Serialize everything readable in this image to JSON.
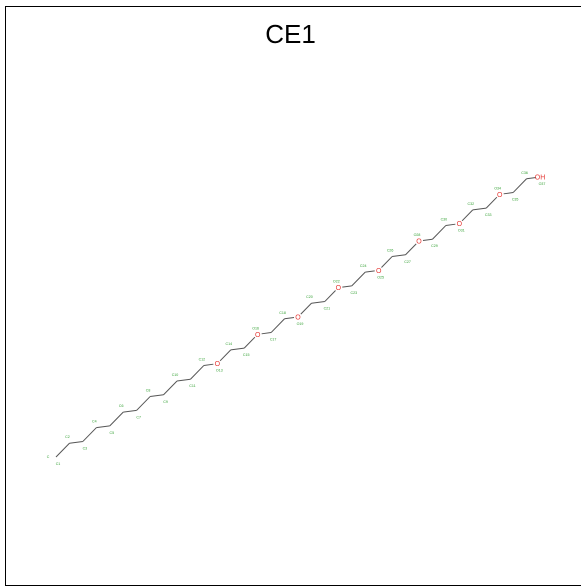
{
  "title": "CE1",
  "colors": {
    "bond": "#555555",
    "oxygen": "#e53935",
    "index": "#2e9e2e"
  },
  "molecule": {
    "hetero_label": "O",
    "terminal_label": "OH",
    "atoms": [
      {
        "label": "",
        "index": "C1",
        "alt": "C"
      },
      {
        "label": "",
        "index": "C2"
      },
      {
        "label": "",
        "index": "C3"
      },
      {
        "label": "",
        "index": "C4"
      },
      {
        "label": "",
        "index": "C5"
      },
      {
        "label": "",
        "index": "C6"
      },
      {
        "label": "",
        "index": "C7"
      },
      {
        "label": "",
        "index": "C8"
      },
      {
        "label": "",
        "index": "C9"
      },
      {
        "label": "",
        "index": "C10"
      },
      {
        "label": "",
        "index": "C11"
      },
      {
        "label": "",
        "index": "C12"
      },
      {
        "label": "O",
        "index": "O13"
      },
      {
        "label": "",
        "index": "C14"
      },
      {
        "label": "",
        "index": "C15"
      },
      {
        "label": "O",
        "index": "O16"
      },
      {
        "label": "",
        "index": "C17"
      },
      {
        "label": "",
        "index": "C18"
      },
      {
        "label": "O",
        "index": "O19"
      },
      {
        "label": "",
        "index": "C20"
      },
      {
        "label": "",
        "index": "C21"
      },
      {
        "label": "O",
        "index": "O22"
      },
      {
        "label": "",
        "index": "C23"
      },
      {
        "label": "",
        "index": "C24"
      },
      {
        "label": "O",
        "index": "O25"
      },
      {
        "label": "",
        "index": "C26"
      },
      {
        "label": "",
        "index": "C27"
      },
      {
        "label": "O",
        "index": "O28"
      },
      {
        "label": "",
        "index": "C29"
      },
      {
        "label": "",
        "index": "C30"
      },
      {
        "label": "O",
        "index": "O31"
      },
      {
        "label": "",
        "index": "C32"
      },
      {
        "label": "",
        "index": "C33"
      },
      {
        "label": "O",
        "index": "O34"
      },
      {
        "label": "",
        "index": "C35"
      },
      {
        "label": "",
        "index": "C36"
      },
      {
        "label": "OH",
        "index": "O37"
      }
    ]
  }
}
